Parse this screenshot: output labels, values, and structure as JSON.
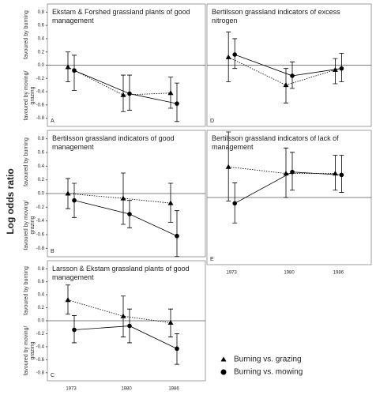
{
  "ylabel": "Log odds ratio",
  "chart_data": [
    {
      "type": "line",
      "title": "Ekstam & Forshed grassland plants of good management",
      "letter": "A",
      "upper_label": "favoured by burning",
      "lower_label": "favoured by moving/ grazing",
      "x": [
        1973,
        1980,
        1986
      ],
      "xlim": [
        1970,
        1990
      ],
      "ylim": [
        -0.9,
        0.9
      ],
      "yticks": [
        0.8,
        0.6,
        0.4,
        0.2,
        {
          "value": 0,
          "label": "0.0"
        },
        -0.2,
        -0.4,
        -0.6,
        -0.8
      ],
      "series": [
        {
          "name": "Burning vs. grazing",
          "marker": "triangle",
          "dashed": true,
          "color": "#000000",
          "values": [
            -0.03,
            -0.45,
            -0.42
          ],
          "lower": [
            -0.25,
            -0.7,
            -0.65
          ],
          "upper": [
            0.2,
            -0.15,
            -0.18
          ]
        },
        {
          "name": "Burning vs. mowing",
          "marker": "circle",
          "dashed": false,
          "color": "#000000",
          "values": [
            -0.08,
            -0.43,
            -0.58
          ],
          "lower": [
            -0.38,
            -0.68,
            -0.85
          ],
          "upper": [
            0.15,
            -0.15,
            -0.27
          ]
        }
      ]
    },
    {
      "type": "line",
      "title": "Bertilsson grassland indicators of good management",
      "letter": "B",
      "upper_label": "favoured by burning",
      "lower_label": "favoured by moving/ grazing",
      "x": [
        1973,
        1980,
        1986
      ],
      "xlim": [
        1970,
        1990
      ],
      "ylim": [
        -0.9,
        0.9
      ],
      "yticks": [
        0.8,
        0.6,
        0.4,
        0.2,
        {
          "value": 0,
          "label": "0.0"
        },
        -0.2,
        -0.4,
        -0.6,
        -0.8
      ],
      "series": [
        {
          "name": "Burning vs. grazing",
          "marker": "triangle",
          "dashed": true,
          "color": "#000000",
          "values": [
            0.0,
            -0.07,
            -0.14
          ],
          "lower": [
            -0.22,
            -0.45,
            -0.42
          ],
          "upper": [
            0.22,
            0.3,
            0.15
          ]
        },
        {
          "name": "Burning vs. mowing",
          "marker": "circle",
          "dashed": false,
          "color": "#000000",
          "values": [
            -0.1,
            -0.3,
            -0.62
          ],
          "lower": [
            -0.35,
            -0.5,
            -0.92
          ],
          "upper": [
            0.15,
            -0.1,
            -0.25
          ]
        }
      ]
    },
    {
      "type": "line",
      "title": "Larsson & Ekstam grassland plants of good management",
      "letter": "C",
      "upper_label": "favoured by burning",
      "lower_label": "favoured by moving/ grazing",
      "x": [
        1973,
        1980,
        1986
      ],
      "xlim": [
        1970,
        1990
      ],
      "ylim": [
        -0.9,
        0.9
      ],
      "xticks": [
        1973,
        1980,
        1986
      ],
      "yticks": [
        0.8,
        0.6,
        0.4,
        0.2,
        {
          "value": 0,
          "label": "0.0"
        },
        -0.2,
        -0.4,
        -0.6,
        -0.8
      ],
      "series": [
        {
          "name": "Burning vs. grazing",
          "marker": "triangle",
          "dashed": true,
          "color": "#000000",
          "values": [
            0.32,
            0.07,
            -0.03
          ],
          "lower": [
            0.1,
            -0.25,
            -0.25
          ],
          "upper": [
            0.55,
            0.38,
            0.18
          ]
        },
        {
          "name": "Burning vs. mowing",
          "marker": "circle",
          "dashed": false,
          "color": "#000000",
          "values": [
            -0.14,
            -0.08,
            -0.43
          ],
          "lower": [
            -0.34,
            -0.34,
            -0.67
          ],
          "upper": [
            0.08,
            0.18,
            -0.2
          ]
        }
      ]
    },
    {
      "type": "line",
      "title": "Bertilsson grassland indicators of excess nitrogen",
      "letter": "D",
      "x": [
        1973,
        1980,
        1986
      ],
      "xlim": [
        1970,
        1990
      ],
      "ylim": [
        -0.9,
        0.9
      ],
      "series": [
        {
          "name": "Burning vs. grazing",
          "marker": "triangle",
          "dashed": true,
          "color": "#000000",
          "values": [
            0.12,
            -0.3,
            -0.07
          ],
          "lower": [
            -0.25,
            -0.57,
            -0.28
          ],
          "upper": [
            0.5,
            -0.05,
            0.1
          ]
        },
        {
          "name": "Burning vs. mowing",
          "marker": "circle",
          "dashed": false,
          "color": "#000000",
          "values": [
            0.16,
            -0.16,
            -0.05
          ],
          "lower": [
            -0.05,
            -0.35,
            -0.25
          ],
          "upper": [
            0.4,
            0.05,
            0.18
          ]
        }
      ]
    },
    {
      "type": "line",
      "title": "Bertilsson grassland indicators of lack of management",
      "letter": "E",
      "x": [
        1973,
        1980,
        1986
      ],
      "xlim": [
        1970,
        1990
      ],
      "ylim": [
        -0.9,
        0.9
      ],
      "xticks": [
        1973,
        1980,
        1986
      ],
      "series": [
        {
          "name": "Burning vs. grazing",
          "marker": "triangle",
          "dashed": true,
          "color": "#000000",
          "values": [
            0.42,
            0.33,
            0.33
          ],
          "lower": [
            -0.05,
            0.0,
            0.1
          ],
          "upper": [
            0.9,
            0.68,
            0.58
          ]
        },
        {
          "name": "Burning vs. mowing",
          "marker": "circle",
          "dashed": false,
          "color": "#000000",
          "values": [
            -0.08,
            0.35,
            0.31
          ],
          "lower": [
            -0.35,
            0.1,
            0.07
          ],
          "upper": [
            0.2,
            0.62,
            0.58
          ]
        }
      ]
    }
  ]
}
